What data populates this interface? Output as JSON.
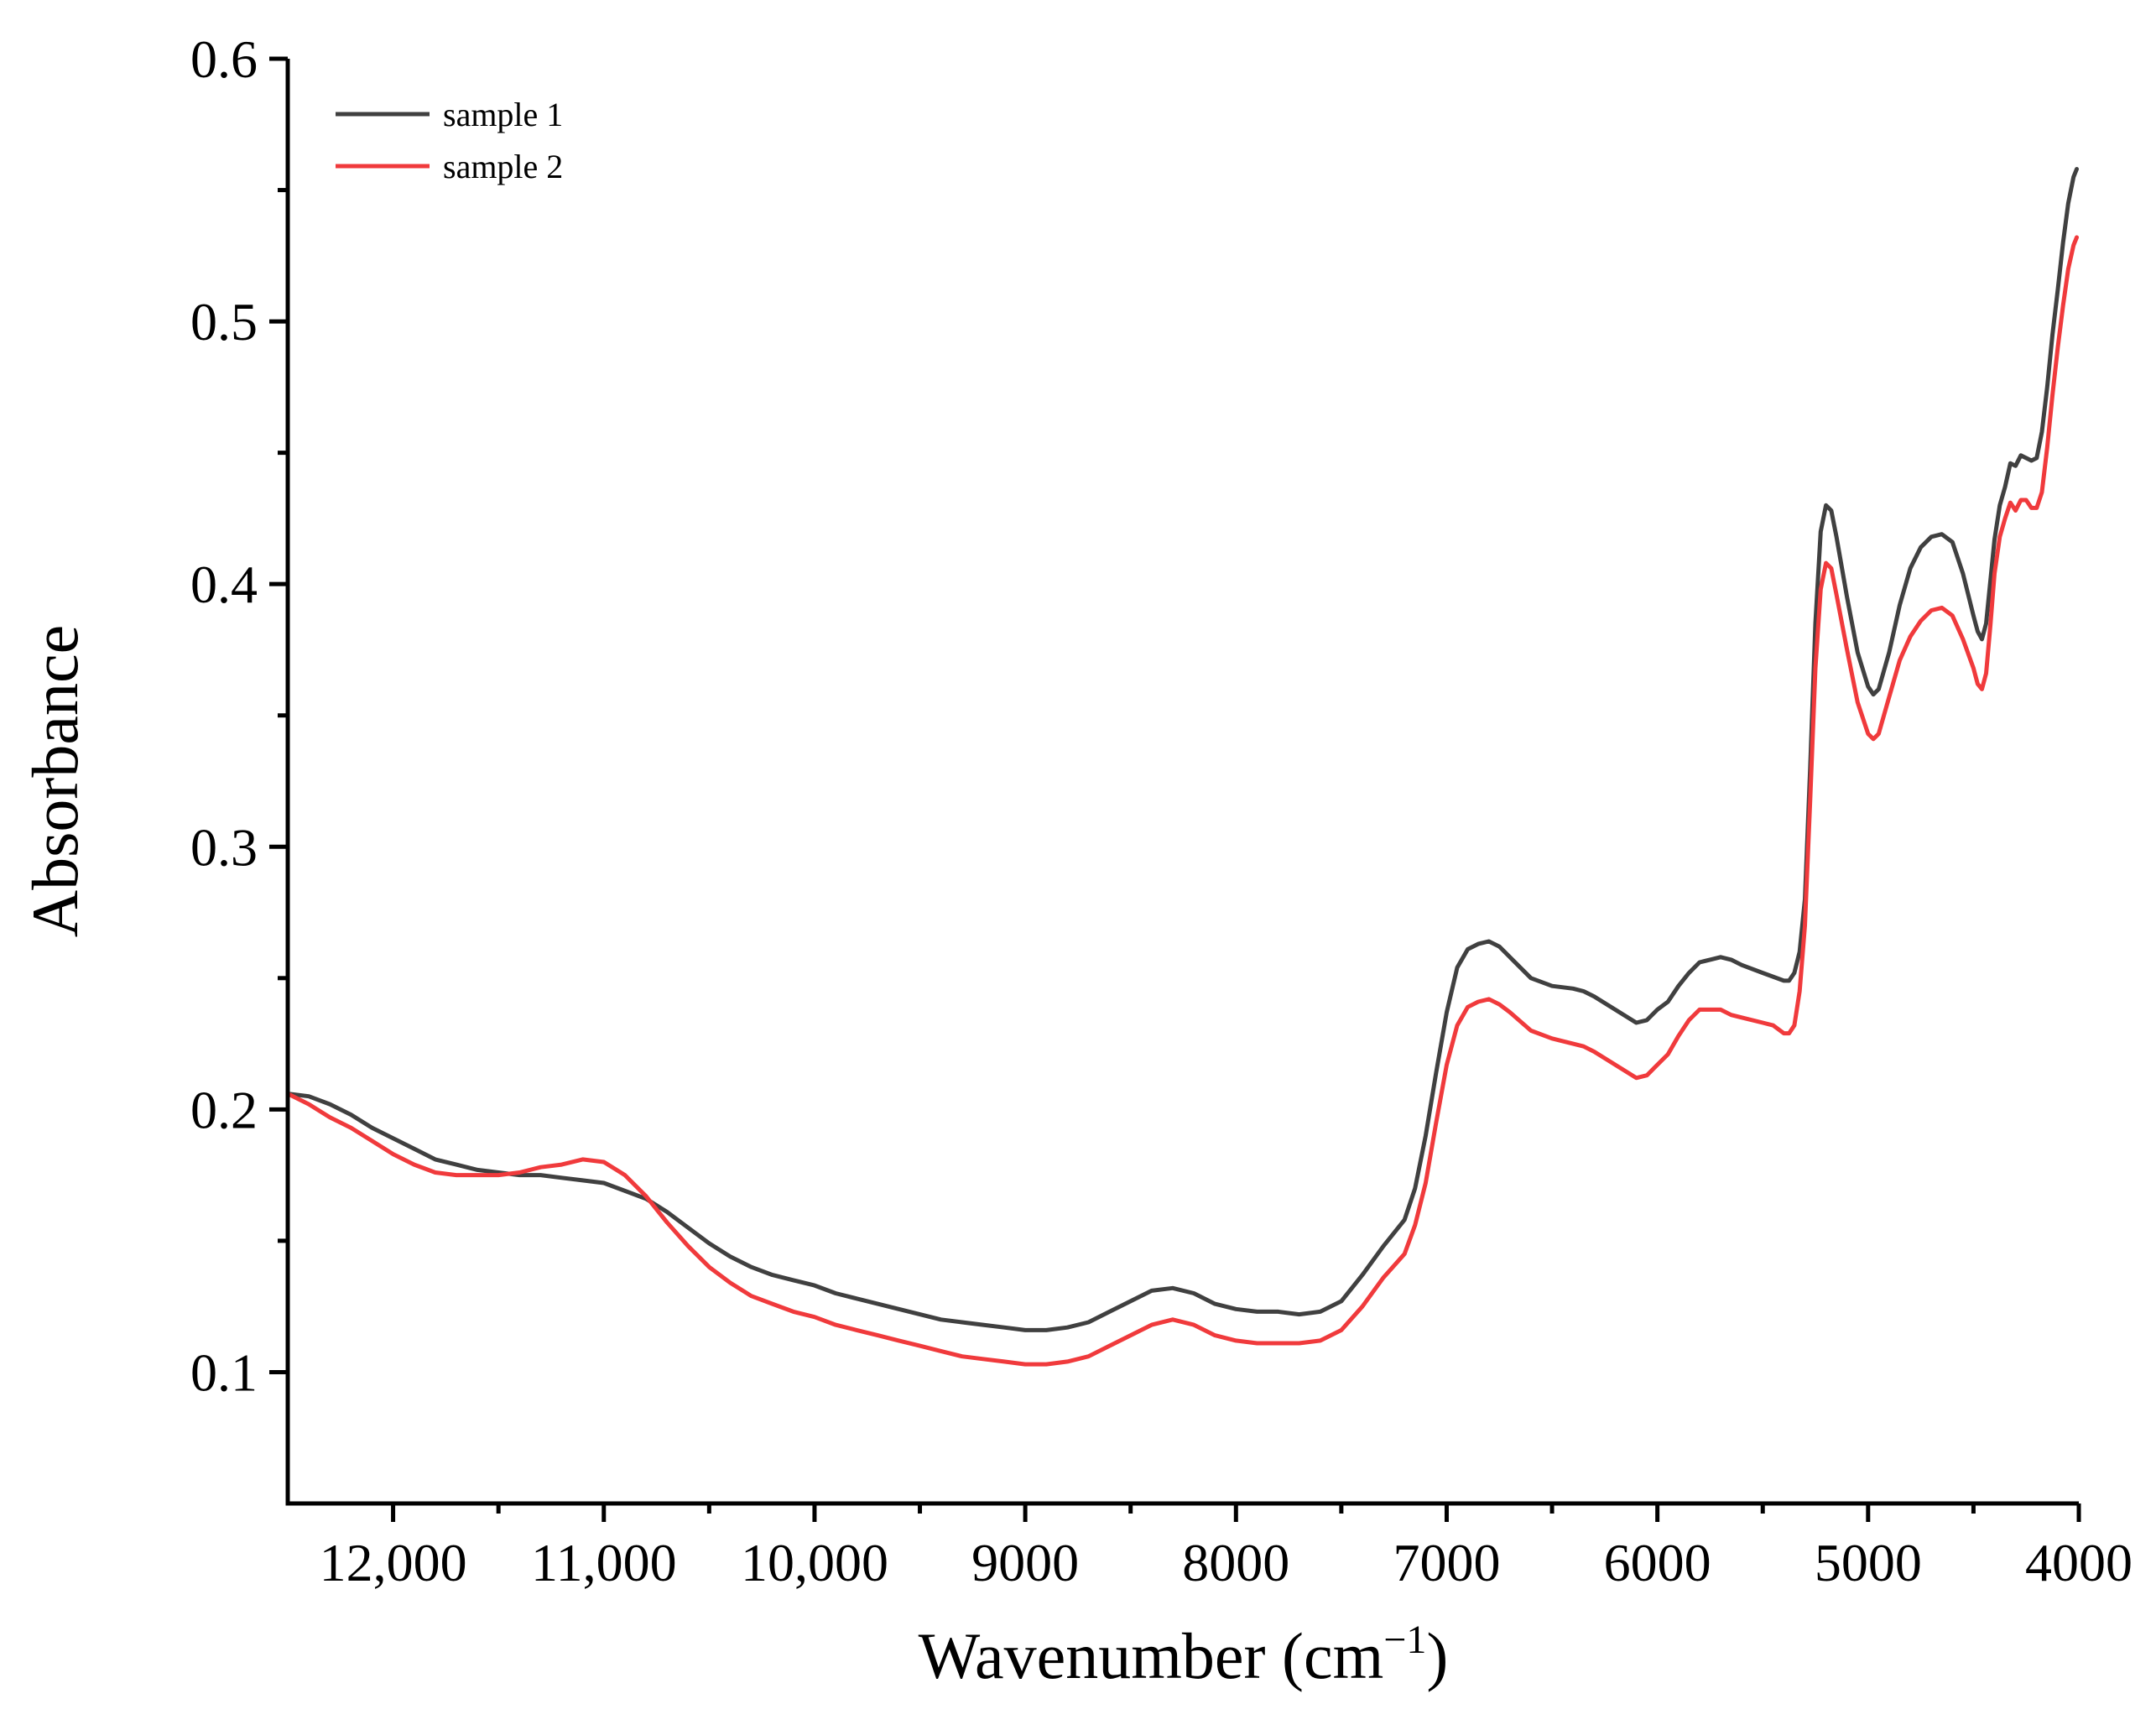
{
  "chart_data": {
    "type": "line",
    "title": "",
    "xlabel": "Wavenumber (cm",
    "xlabel_sup": "−1",
    "xlabel_close": ")",
    "ylabel": "Absorbance",
    "x_reversed": true,
    "xlim": [
      12500,
      4000
    ],
    "ylim": [
      0.05,
      0.6
    ],
    "x_ticks": [
      12000,
      11000,
      10000,
      9000,
      8000,
      7000,
      6000,
      5000,
      4000
    ],
    "x_tick_labels": [
      "12,000",
      "11,000",
      "10,000",
      "9000",
      "8000",
      "7000",
      "6000",
      "5000",
      "4000"
    ],
    "y_ticks": [
      0.1,
      0.2,
      0.3,
      0.4,
      0.5,
      0.6
    ],
    "y_tick_labels": [
      "0.1",
      "0.2",
      "0.3",
      "0.4",
      "0.5",
      "0.6"
    ],
    "grid": false,
    "legend_position": "top-left",
    "series": [
      {
        "name": "sample 1",
        "color": "#404040",
        "points": [
          [
            12500,
            0.206
          ],
          [
            12400,
            0.205
          ],
          [
            12300,
            0.202
          ],
          [
            12200,
            0.198
          ],
          [
            12100,
            0.193
          ],
          [
            12000,
            0.189
          ],
          [
            11900,
            0.185
          ],
          [
            11800,
            0.181
          ],
          [
            11700,
            0.179
          ],
          [
            11600,
            0.177
          ],
          [
            11500,
            0.176
          ],
          [
            11400,
            0.175
          ],
          [
            11300,
            0.175
          ],
          [
            11200,
            0.174
          ],
          [
            11100,
            0.173
          ],
          [
            11000,
            0.172
          ],
          [
            10900,
            0.169
          ],
          [
            10800,
            0.166
          ],
          [
            10700,
            0.161
          ],
          [
            10600,
            0.155
          ],
          [
            10500,
            0.149
          ],
          [
            10400,
            0.144
          ],
          [
            10300,
            0.14
          ],
          [
            10200,
            0.137
          ],
          [
            10100,
            0.135
          ],
          [
            10000,
            0.133
          ],
          [
            9900,
            0.13
          ],
          [
            9800,
            0.128
          ],
          [
            9700,
            0.126
          ],
          [
            9600,
            0.124
          ],
          [
            9500,
            0.122
          ],
          [
            9400,
            0.12
          ],
          [
            9300,
            0.119
          ],
          [
            9200,
            0.118
          ],
          [
            9100,
            0.117
          ],
          [
            9000,
            0.116
          ],
          [
            8900,
            0.116
          ],
          [
            8800,
            0.117
          ],
          [
            8700,
            0.119
          ],
          [
            8600,
            0.123
          ],
          [
            8500,
            0.127
          ],
          [
            8400,
            0.131
          ],
          [
            8300,
            0.132
          ],
          [
            8200,
            0.13
          ],
          [
            8100,
            0.126
          ],
          [
            8000,
            0.124
          ],
          [
            7900,
            0.123
          ],
          [
            7800,
            0.123
          ],
          [
            7700,
            0.122
          ],
          [
            7600,
            0.123
          ],
          [
            7500,
            0.127
          ],
          [
            7400,
            0.137
          ],
          [
            7300,
            0.148
          ],
          [
            7200,
            0.158
          ],
          [
            7150,
            0.17
          ],
          [
            7100,
            0.19
          ],
          [
            7050,
            0.214
          ],
          [
            7000,
            0.237
          ],
          [
            6950,
            0.254
          ],
          [
            6900,
            0.261
          ],
          [
            6850,
            0.263
          ],
          [
            6800,
            0.264
          ],
          [
            6750,
            0.262
          ],
          [
            6700,
            0.258
          ],
          [
            6600,
            0.25
          ],
          [
            6500,
            0.247
          ],
          [
            6400,
            0.246
          ],
          [
            6350,
            0.245
          ],
          [
            6300,
            0.243
          ],
          [
            6200,
            0.238
          ],
          [
            6100,
            0.233
          ],
          [
            6050,
            0.234
          ],
          [
            6000,
            0.238
          ],
          [
            5950,
            0.241
          ],
          [
            5900,
            0.247
          ],
          [
            5850,
            0.252
          ],
          [
            5800,
            0.256
          ],
          [
            5750,
            0.257
          ],
          [
            5700,
            0.258
          ],
          [
            5650,
            0.257
          ],
          [
            5600,
            0.255
          ],
          [
            5500,
            0.252
          ],
          [
            5400,
            0.249
          ],
          [
            5375,
            0.249
          ],
          [
            5350,
            0.252
          ],
          [
            5325,
            0.26
          ],
          [
            5300,
            0.28
          ],
          [
            5275,
            0.33
          ],
          [
            5250,
            0.385
          ],
          [
            5225,
            0.42
          ],
          [
            5200,
            0.43
          ],
          [
            5175,
            0.428
          ],
          [
            5150,
            0.418
          ],
          [
            5100,
            0.395
          ],
          [
            5050,
            0.374
          ],
          [
            5000,
            0.361
          ],
          [
            4975,
            0.358
          ],
          [
            4950,
            0.36
          ],
          [
            4900,
            0.374
          ],
          [
            4850,
            0.392
          ],
          [
            4800,
            0.406
          ],
          [
            4750,
            0.414
          ],
          [
            4700,
            0.418
          ],
          [
            4650,
            0.419
          ],
          [
            4600,
            0.416
          ],
          [
            4550,
            0.404
          ],
          [
            4500,
            0.388
          ],
          [
            4480,
            0.382
          ],
          [
            4460,
            0.379
          ],
          [
            4440,
            0.385
          ],
          [
            4420,
            0.401
          ],
          [
            4400,
            0.417
          ],
          [
            4375,
            0.43
          ],
          [
            4350,
            0.437
          ],
          [
            4325,
            0.446
          ],
          [
            4300,
            0.445
          ],
          [
            4275,
            0.449
          ],
          [
            4250,
            0.448
          ],
          [
            4225,
            0.447
          ],
          [
            4200,
            0.448
          ],
          [
            4175,
            0.458
          ],
          [
            4150,
            0.475
          ],
          [
            4125,
            0.495
          ],
          [
            4100,
            0.512
          ],
          [
            4075,
            0.53
          ],
          [
            4050,
            0.545
          ],
          [
            4025,
            0.555
          ],
          [
            4010,
            0.558
          ]
        ]
      },
      {
        "name": "sample 2",
        "color": "#f03a3c",
        "points": [
          [
            12500,
            0.206
          ],
          [
            12400,
            0.202
          ],
          [
            12300,
            0.197
          ],
          [
            12200,
            0.193
          ],
          [
            12100,
            0.188
          ],
          [
            12000,
            0.183
          ],
          [
            11900,
            0.179
          ],
          [
            11800,
            0.176
          ],
          [
            11700,
            0.175
          ],
          [
            11600,
            0.175
          ],
          [
            11500,
            0.175
          ],
          [
            11400,
            0.176
          ],
          [
            11300,
            0.178
          ],
          [
            11200,
            0.179
          ],
          [
            11100,
            0.181
          ],
          [
            11000,
            0.18
          ],
          [
            10900,
            0.175
          ],
          [
            10800,
            0.167
          ],
          [
            10700,
            0.157
          ],
          [
            10600,
            0.148
          ],
          [
            10500,
            0.14
          ],
          [
            10400,
            0.134
          ],
          [
            10300,
            0.129
          ],
          [
            10200,
            0.126
          ],
          [
            10100,
            0.123
          ],
          [
            10000,
            0.121
          ],
          [
            9900,
            0.118
          ],
          [
            9800,
            0.116
          ],
          [
            9700,
            0.114
          ],
          [
            9600,
            0.112
          ],
          [
            9500,
            0.11
          ],
          [
            9400,
            0.108
          ],
          [
            9300,
            0.106
          ],
          [
            9200,
            0.105
          ],
          [
            9100,
            0.104
          ],
          [
            9000,
            0.103
          ],
          [
            8900,
            0.103
          ],
          [
            8800,
            0.104
          ],
          [
            8700,
            0.106
          ],
          [
            8600,
            0.11
          ],
          [
            8500,
            0.114
          ],
          [
            8400,
            0.118
          ],
          [
            8300,
            0.12
          ],
          [
            8200,
            0.118
          ],
          [
            8100,
            0.114
          ],
          [
            8000,
            0.112
          ],
          [
            7900,
            0.111
          ],
          [
            7800,
            0.111
          ],
          [
            7700,
            0.111
          ],
          [
            7600,
            0.112
          ],
          [
            7500,
            0.116
          ],
          [
            7400,
            0.125
          ],
          [
            7300,
            0.136
          ],
          [
            7200,
            0.145
          ],
          [
            7150,
            0.156
          ],
          [
            7100,
            0.172
          ],
          [
            7050,
            0.195
          ],
          [
            7000,
            0.217
          ],
          [
            6950,
            0.232
          ],
          [
            6900,
            0.239
          ],
          [
            6850,
            0.241
          ],
          [
            6800,
            0.242
          ],
          [
            6750,
            0.24
          ],
          [
            6700,
            0.237
          ],
          [
            6600,
            0.23
          ],
          [
            6500,
            0.227
          ],
          [
            6400,
            0.225
          ],
          [
            6350,
            0.224
          ],
          [
            6300,
            0.222
          ],
          [
            6200,
            0.217
          ],
          [
            6100,
            0.212
          ],
          [
            6050,
            0.213
          ],
          [
            6000,
            0.217
          ],
          [
            5950,
            0.221
          ],
          [
            5900,
            0.228
          ],
          [
            5850,
            0.234
          ],
          [
            5800,
            0.238
          ],
          [
            5750,
            0.238
          ],
          [
            5700,
            0.238
          ],
          [
            5650,
            0.236
          ],
          [
            5600,
            0.235
          ],
          [
            5500,
            0.233
          ],
          [
            5450,
            0.232
          ],
          [
            5400,
            0.229
          ],
          [
            5375,
            0.229
          ],
          [
            5350,
            0.232
          ],
          [
            5325,
            0.245
          ],
          [
            5300,
            0.27
          ],
          [
            5275,
            0.318
          ],
          [
            5250,
            0.368
          ],
          [
            5225,
            0.398
          ],
          [
            5200,
            0.408
          ],
          [
            5175,
            0.406
          ],
          [
            5150,
            0.396
          ],
          [
            5100,
            0.375
          ],
          [
            5050,
            0.355
          ],
          [
            5000,
            0.343
          ],
          [
            4975,
            0.341
          ],
          [
            4950,
            0.343
          ],
          [
            4900,
            0.357
          ],
          [
            4850,
            0.371
          ],
          [
            4800,
            0.38
          ],
          [
            4750,
            0.386
          ],
          [
            4700,
            0.39
          ],
          [
            4650,
            0.391
          ],
          [
            4600,
            0.388
          ],
          [
            4550,
            0.379
          ],
          [
            4500,
            0.368
          ],
          [
            4480,
            0.362
          ],
          [
            4460,
            0.36
          ],
          [
            4440,
            0.366
          ],
          [
            4420,
            0.384
          ],
          [
            4400,
            0.404
          ],
          [
            4375,
            0.418
          ],
          [
            4350,
            0.425
          ],
          [
            4325,
            0.431
          ],
          [
            4300,
            0.428
          ],
          [
            4275,
            0.432
          ],
          [
            4250,
            0.432
          ],
          [
            4225,
            0.429
          ],
          [
            4200,
            0.429
          ],
          [
            4175,
            0.435
          ],
          [
            4150,
            0.452
          ],
          [
            4125,
            0.472
          ],
          [
            4100,
            0.49
          ],
          [
            4075,
            0.506
          ],
          [
            4050,
            0.52
          ],
          [
            4025,
            0.529
          ],
          [
            4010,
            0.532
          ]
        ]
      }
    ]
  }
}
